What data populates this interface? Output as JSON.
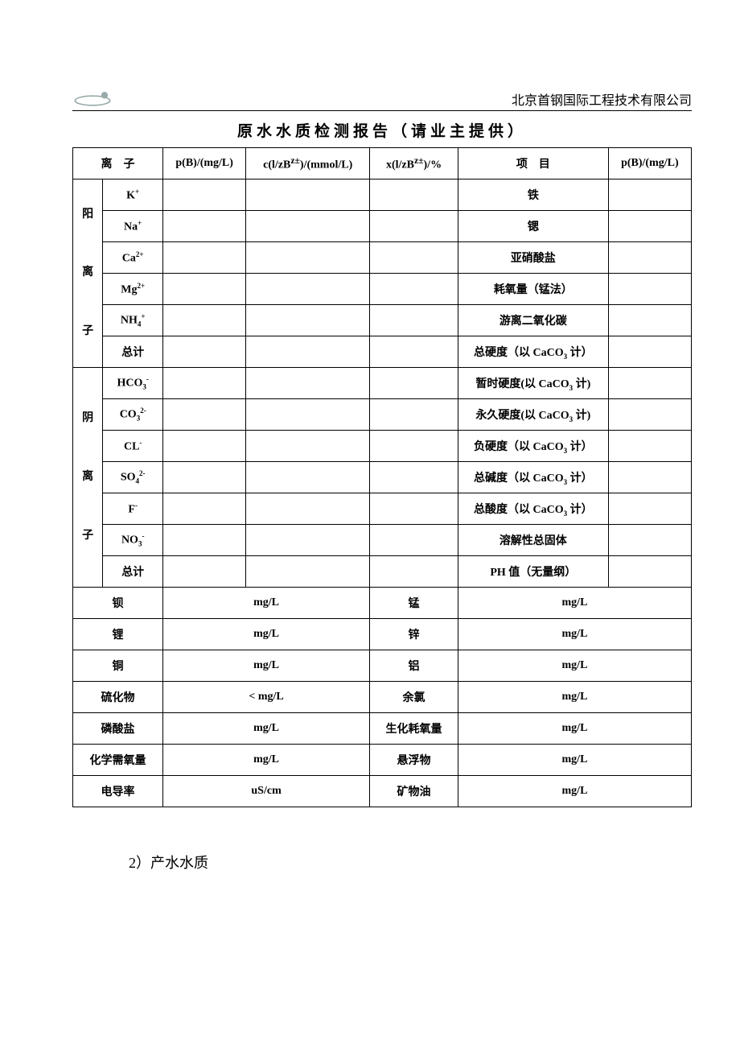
{
  "header": {
    "company": "北京首钢国际工程技术有限公司"
  },
  "title": "原水水质检测报告（请业主提供）",
  "columns": {
    "ion": "离　子",
    "pb": "p(B)/(mg/L)",
    "c": "c(l/zB",
    "c_sup": "z±",
    "c_tail": ")/(mmol/L)",
    "x": "x(l/zB",
    "x_sup": "z±",
    "x_tail": ")/%",
    "item": "项　目",
    "pb2": "p(B)/(mg/L)"
  },
  "cations": {
    "group": "阳离子",
    "g1": "阳",
    "g2": "离",
    "g3": "子",
    "rows": [
      {
        "ion_html": "K<sup>+</sup>",
        "item": "铁"
      },
      {
        "ion_html": "Na<sup>+</sup>",
        "item": "锶"
      },
      {
        "ion_html": "Ca<sup>2+</sup>",
        "item": "亚硝酸盐"
      },
      {
        "ion_html": "Mg<sup>2+</sup>",
        "item": "耗氧量（锰法）"
      },
      {
        "ion_html": "NH<sub>4</sub><sup>+</sup>",
        "item": "游离二氧化碳"
      },
      {
        "ion_html": "总计",
        "item_html": "总硬度（以 CaCO<sub>3</sub> 计）"
      }
    ]
  },
  "anions": {
    "group": "阴离子",
    "g1": "阴",
    "g2": "离",
    "g3": "子",
    "rows": [
      {
        "ion_html": "HCO<sub>3</sub><sup>-</sup>",
        "item_html": "暂时硬度(以 CaCO<sub>3</sub> 计)"
      },
      {
        "ion_html": "CO<sub>3</sub><sup>2-</sup>",
        "item_html": "永久硬度(以 CaCO<sub>3</sub> 计)"
      },
      {
        "ion_html": "CL<sup>-</sup>",
        "item_html": "负硬度（以 CaCO<sub>3</sub> 计）"
      },
      {
        "ion_html": "SO<sub>4</sub><sup>2-</sup>",
        "item_html": "总碱度（以 CaCO<sub>3</sub> 计）"
      },
      {
        "ion_html": "F<sup>-</sup>",
        "item_html": "总酸度（以 CaCO<sub>3</sub> 计）"
      },
      {
        "ion_html": "NO<sub>3</sub><sup>-</sup>",
        "item": "溶解性总固体"
      },
      {
        "ion_html": "总计",
        "item": "PH 值（无量纲）"
      }
    ]
  },
  "bottom_rows": [
    {
      "left": "钡",
      "lunit": "mg/L",
      "mid": "锰",
      "runit": "mg/L"
    },
    {
      "left": "锂",
      "lunit": "mg/L",
      "mid": "锌",
      "runit": "mg/L"
    },
    {
      "left": "铜",
      "lunit": "mg/L",
      "mid": "铝",
      "runit": "mg/L"
    },
    {
      "left": "硫化物",
      "lunit": "< mg/L",
      "mid": "余氯",
      "runit": "mg/L"
    },
    {
      "left": "磷酸盐",
      "lunit": "mg/L",
      "mid": "生化耗氧量",
      "runit": "mg/L"
    },
    {
      "left": "化学需氧量",
      "lunit": "mg/L",
      "mid": "悬浮物",
      "runit": "mg/L"
    },
    {
      "left": "电导率",
      "lunit": "uS/cm",
      "mid": "矿物油",
      "runit": "mg/L"
    }
  ],
  "footer": "2）产水水质"
}
